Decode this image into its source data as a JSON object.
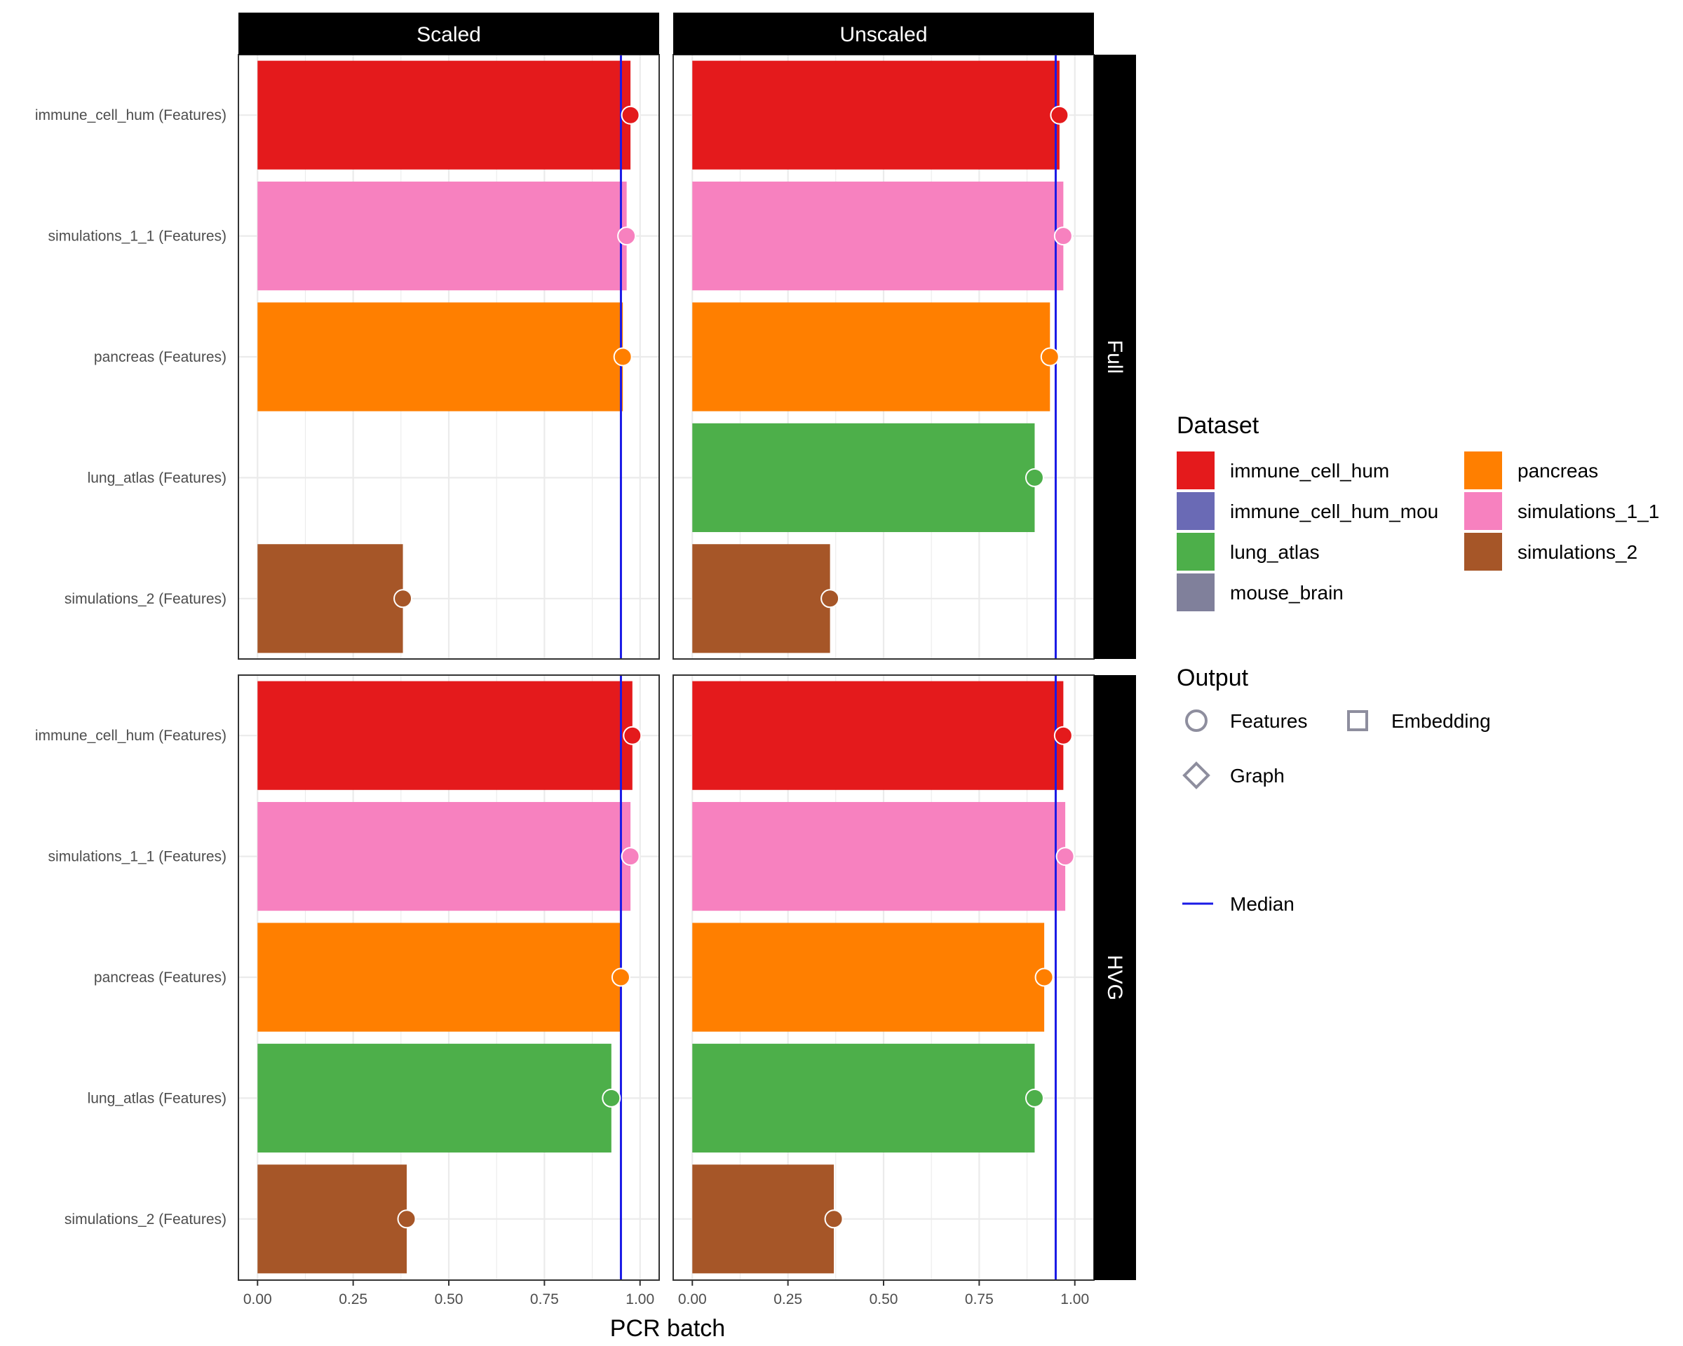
{
  "chart_data": {
    "type": "bar",
    "xlabel": "PCR batch",
    "ylabel": "",
    "xlim": [
      -0.05,
      1.05
    ],
    "x_ticks": [
      "0.00",
      "0.25",
      "0.50",
      "0.75",
      "1.00"
    ],
    "x_tick_values": [
      0,
      0.25,
      0.5,
      0.75,
      1.0
    ],
    "grid": true,
    "columns": [
      "Scaled",
      "Unscaled"
    ],
    "rows": [
      "Full",
      "HVG"
    ],
    "categories": [
      "immune_cell_hum (Features)",
      "simulations_1_1 (Features)",
      "pancreas (Features)",
      "lung_atlas (Features)",
      "simulations_2 (Features)"
    ],
    "category_colors": {
      "immune_cell_hum (Features)": "#E41A1C",
      "simulations_1_1 (Features)": "#F781BF",
      "pancreas (Features)": "#FF7F00",
      "lung_atlas (Features)": "#4DAF4A",
      "simulations_2 (Features)": "#A65628"
    },
    "median_color": "#1A1AE6",
    "panels": [
      {
        "row": "Full",
        "column": "Scaled",
        "median": 0.95,
        "values": [
          0.975,
          0.965,
          0.955,
          null,
          0.38
        ]
      },
      {
        "row": "Full",
        "column": "Unscaled",
        "median": 0.95,
        "values": [
          0.96,
          0.97,
          0.935,
          0.895,
          0.36
        ]
      },
      {
        "row": "HVG",
        "column": "Scaled",
        "median": 0.95,
        "values": [
          0.98,
          0.975,
          0.95,
          0.925,
          0.39
        ]
      },
      {
        "row": "HVG",
        "column": "Unscaled",
        "median": 0.95,
        "values": [
          0.97,
          0.975,
          0.92,
          0.895,
          0.37
        ]
      }
    ],
    "legend": {
      "placement": "right",
      "dataset_title": "Dataset",
      "dataset_items": [
        {
          "label": "immune_cell_hum",
          "color": "#E41A1C"
        },
        {
          "label": "immune_cell_hum_mou",
          "color": "#6A6AB5"
        },
        {
          "label": "lung_atlas",
          "color": "#4DAF4A"
        },
        {
          "label": "mouse_brain",
          "color": "#80809B"
        },
        {
          "label": "pancreas",
          "color": "#FF7F00"
        },
        {
          "label": "simulations_1_1",
          "color": "#F781BF"
        },
        {
          "label": "simulations_2",
          "color": "#A65628"
        }
      ],
      "output_title": "Output",
      "output_items": [
        {
          "label": "Features",
          "shape": "circle"
        },
        {
          "label": "Embedding",
          "shape": "square"
        },
        {
          "label": "Graph",
          "shape": "diamond"
        }
      ],
      "median_label": "Median"
    }
  }
}
